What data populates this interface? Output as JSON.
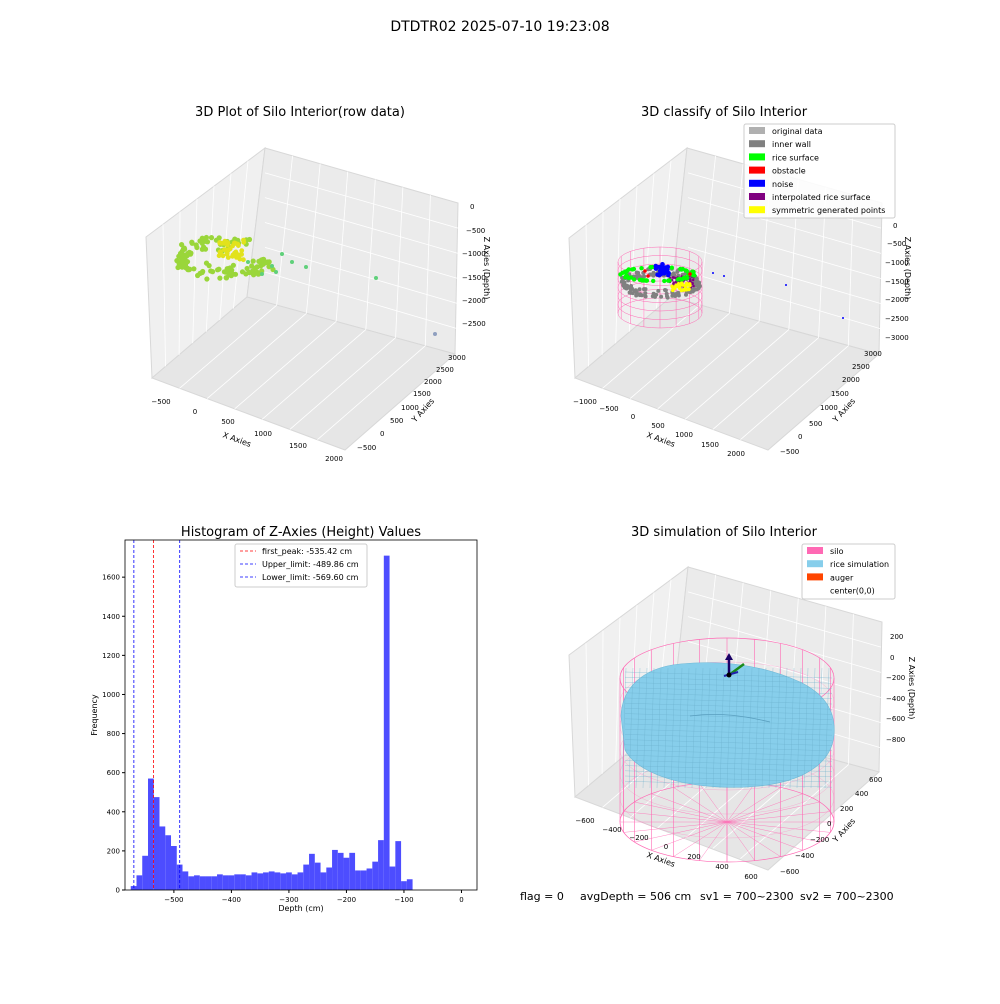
{
  "figure": {
    "suptitle": "DTDTR02 2025-07-10 19:23:08",
    "footer": {
      "flag": "flag = 0",
      "avg_depth": "avgDepth = 506 cm",
      "sv1": "sv1 = 700~2300",
      "sv2": "sv2 = 700~2300"
    }
  },
  "chart_data": [
    {
      "type": "scatter",
      "title": "3D Plot of Silo Interior(row data)",
      "xlabel": "X Axies",
      "ylabel": "Y Axies",
      "zlabel": "Z Axies (Depth)",
      "x_ticks": [
        "−500",
        "0",
        "500",
        "1000",
        "1500",
        "2000"
      ],
      "y_ticks": [
        "−500",
        "0",
        "500",
        "1000",
        "1500",
        "2000",
        "2500",
        "3000"
      ],
      "z_ticks": [
        "0",
        "−500",
        "−1000",
        "−1500",
        "−2000",
        "−2500"
      ],
      "colors": {
        "ring": "#9ad63a",
        "inner": "#e2e21c",
        "stray": "#5fd07a",
        "far": "#8f9fbf"
      }
    },
    {
      "type": "scatter",
      "title": "3D classify of Silo Interior",
      "xlabel": "X Axies",
      "ylabel": "Y Axies",
      "zlabel": "Z Axies (Depth)",
      "x_ticks": [
        "−1000",
        "−500",
        "0",
        "500",
        "1000",
        "1500",
        "2000"
      ],
      "y_ticks": [
        "−500",
        "0",
        "500",
        "1000",
        "1500",
        "2000",
        "2500",
        "3000"
      ],
      "z_ticks": [
        "0",
        "−500",
        "−1000",
        "−1500",
        "−2000",
        "−2500",
        "−3000"
      ],
      "legend_position": "top-right",
      "legend": [
        {
          "label": "original data",
          "color": "#b0b0b0"
        },
        {
          "label": "inner wall",
          "color": "#808080"
        },
        {
          "label": "rice surface",
          "color": "#00ff00"
        },
        {
          "label": "obstacle",
          "color": "#ff0000"
        },
        {
          "label": "noise",
          "color": "#0000ff"
        },
        {
          "label": "interpolated rice surface",
          "color": "#800080"
        },
        {
          "label": "symmetric generated points",
          "color": "#ffff00"
        }
      ],
      "wireframe_color": "#ff69b4"
    },
    {
      "type": "bar",
      "title": "Histogram of Z-Axies (Height) Values",
      "xlabel": "Depth (cm)",
      "ylabel": "Frequency",
      "xlim": [
        -585,
        27
      ],
      "ylim": [
        0,
        1790
      ],
      "x_ticks": [
        -500,
        -400,
        -300,
        -200,
        -100,
        0
      ],
      "y_ticks": [
        0,
        200,
        400,
        600,
        800,
        1000,
        1200,
        1400,
        1600
      ],
      "bin_width": 10,
      "bins_start": -575,
      "bar_color": "#4d4dff",
      "values": [
        20,
        75,
        175,
        570,
        475,
        325,
        280,
        225,
        130,
        95,
        70,
        75,
        70,
        70,
        70,
        80,
        75,
        75,
        80,
        80,
        75,
        90,
        85,
        90,
        95,
        90,
        85,
        90,
        80,
        90,
        130,
        185,
        140,
        90,
        115,
        205,
        190,
        165,
        190,
        100,
        100,
        110,
        145,
        255,
        1710,
        120,
        250,
        45,
        55
      ],
      "vlines": [
        {
          "label": "first_peak: -535.42 cm",
          "x": -535.42,
          "color": "#ff0000"
        },
        {
          "label": "Upper_limit: -489.86 cm",
          "x": -489.86,
          "color": "#0000ff"
        },
        {
          "label": "Lower_limit: -569.60 cm",
          "x": -569.6,
          "color": "#0000ff"
        }
      ],
      "legend_position": "top-center"
    },
    {
      "type": "area",
      "title": "3D simulation of Silo Interior",
      "xlabel": "X Axies",
      "ylabel": "Y Axies",
      "zlabel": "Z Axies (Depth)",
      "x_ticks": [
        "−600",
        "−400",
        "−200",
        "0",
        "200",
        "400",
        "600"
      ],
      "y_ticks": [
        "−600",
        "−400",
        "−200",
        "0",
        "200",
        "400",
        "600"
      ],
      "z_ticks": [
        "200",
        "0",
        "−200",
        "−400",
        "−600",
        "−800"
      ],
      "legend_position": "top-right",
      "legend": [
        {
          "label": "silo",
          "color": "#ff69b4"
        },
        {
          "label": "rice simulation",
          "color": "#87ceeb"
        },
        {
          "label": "auger",
          "color": "#ff4500"
        },
        {
          "label": "center(0,0)",
          "color": ""
        }
      ]
    }
  ]
}
